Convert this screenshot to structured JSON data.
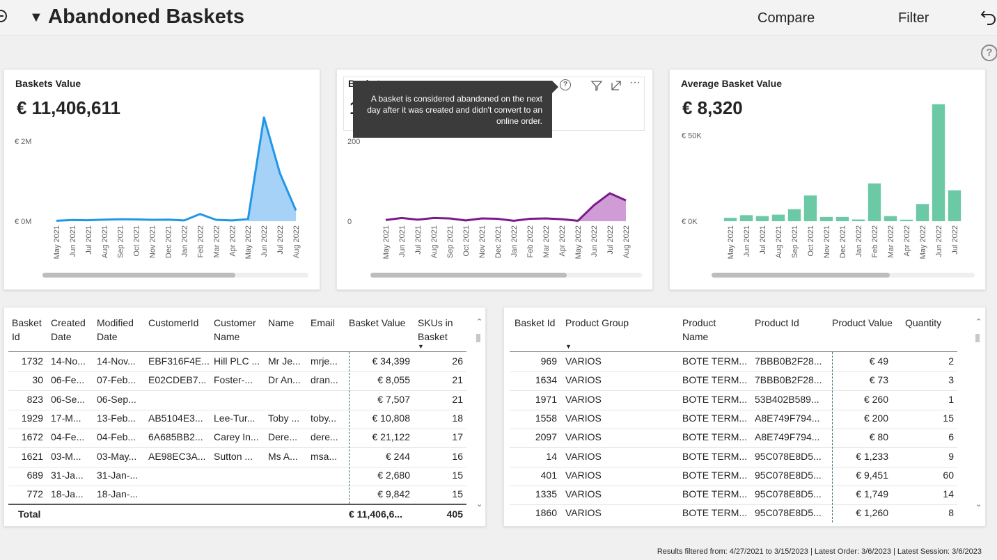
{
  "header": {
    "title": "Abandoned Baskets",
    "compare_label": "Compare",
    "filter_label": "Filter"
  },
  "cards": {
    "baskets_value": {
      "title": "Baskets Value",
      "kpi": "€ 11,406,611"
    },
    "baskets": {
      "title": "Baskets",
      "kpi_partial": "1"
    },
    "avg_basket_value": {
      "title": "Average Basket Value",
      "kpi": "€ 8,320"
    }
  },
  "tooltip": {
    "line1": "A basket is considered abandoned on the next",
    "line2": "day after it was created and didn't convert to an",
    "line3": "online order."
  },
  "colors": {
    "blue_line": "#2196e8",
    "blue_fill": "#a6d2f7",
    "purple_line": "#7b1a8a",
    "purple_fill": "#cf9cd6",
    "green_bar": "#6cc9a6"
  },
  "chart_data": [
    {
      "type": "area",
      "title": "Baskets Value",
      "categories": [
        "May 2021",
        "Jun 2021",
        "Jul 2021",
        "Aug 2021",
        "Sep 2021",
        "Oct 2021",
        "Nov 2021",
        "Dec 2021",
        "Jan 2022",
        "Feb 2022",
        "Mar 2022",
        "Apr 2022",
        "May 2022",
        "Jun 2022",
        "Jul 2022",
        "Aug 2022"
      ],
      "yticks": [
        "€ 0M",
        "€ 2M"
      ],
      "ylim": [
        0,
        3100000
      ],
      "values": [
        10000,
        30000,
        25000,
        40000,
        50000,
        45000,
        35000,
        40000,
        20000,
        180000,
        35000,
        20000,
        50000,
        2600000,
        1200000,
        270000
      ],
      "filled_from_index": 12
    },
    {
      "type": "area",
      "title": "Baskets",
      "categories": [
        "May 2021",
        "Jun 2021",
        "Jul 2021",
        "Aug 2021",
        "Sep 2021",
        "Oct 2021",
        "Nov 2021",
        "Dec 2021",
        "Jan 2022",
        "Feb 2022",
        "Mar 2022",
        "Apr 2022",
        "May 2022",
        "Jun 2022",
        "Jul 2022",
        "Aug 2022"
      ],
      "yticks": [
        "0",
        "200"
      ],
      "ylim": [
        0,
        310
      ],
      "values": [
        3,
        8,
        4,
        8,
        7,
        2,
        7,
        6,
        1,
        6,
        7,
        5,
        1,
        40,
        70,
        52
      ],
      "filled_from_index": 12
    },
    {
      "type": "bar",
      "title": "Average Basket Value",
      "categories": [
        "May 2021",
        "Jun 2021",
        "Jul 2021",
        "Aug 2021",
        "Sep 2021",
        "Oct 2021",
        "Nov 2021",
        "Dec 2021",
        "Jan 2022",
        "Feb 2022",
        "Mar 2022",
        "Apr 2022",
        "May 2022",
        "Jun 2022",
        "Jul 2022"
      ],
      "yticks": [
        "€ 0K",
        "€ 50K"
      ],
      "ylim": [
        0,
        72000
      ],
      "values": [
        2000,
        3500,
        3000,
        3800,
        7000,
        15000,
        2500,
        2500,
        1000,
        22000,
        3000,
        900,
        10000,
        68000,
        18000
      ]
    }
  ],
  "left_table": {
    "headers": [
      [
        "Basket",
        "Id"
      ],
      [
        "Created",
        "Date"
      ],
      [
        "Modified",
        "Date"
      ],
      [
        "CustomerId"
      ],
      [
        "Customer",
        "Name"
      ],
      [
        "Name"
      ],
      [
        "Email"
      ],
      [
        "Basket Value"
      ],
      [
        "SKUs in",
        "Basket"
      ]
    ],
    "rows": [
      [
        "1732",
        "14-No...",
        "14-Nov...",
        "EBF316F4E...",
        "Hill PLC ...",
        "Mr Je...",
        "mrje...",
        "€ 34,399",
        "26"
      ],
      [
        "30",
        "06-Fe...",
        "07-Feb...",
        "E02CDEB7...",
        "Foster-...",
        "Dr An...",
        "dran...",
        "€ 8,055",
        "21"
      ],
      [
        "823",
        "06-Se...",
        "06-Sep...",
        "",
        "",
        "",
        "",
        "€ 7,507",
        "21"
      ],
      [
        "1929",
        "17-M...",
        "13-Feb...",
        "AB5104E3...",
        "Lee-Tur...",
        "Toby ...",
        "toby...",
        "€ 10,808",
        "18"
      ],
      [
        "1672",
        "04-Fe...",
        "04-Feb...",
        "6A685BB2...",
        "Carey In...",
        "Dere...",
        "dere...",
        "€ 21,122",
        "17"
      ],
      [
        "1621",
        "03-M...",
        "03-May...",
        "AE98EC3A...",
        "Sutton ...",
        "Ms A...",
        "msa...",
        "€ 244",
        "16"
      ],
      [
        "689",
        "31-Ja...",
        "31-Jan-...",
        "",
        "",
        "",
        "",
        "€ 2,680",
        "15"
      ],
      [
        "772",
        "18-Ja...",
        "18-Jan-...",
        "",
        "",
        "",
        "",
        "€ 9,842",
        "15"
      ]
    ],
    "total_label": "Total",
    "total_value": "€ 11,406,6...",
    "total_skus": "405"
  },
  "right_table": {
    "headers": [
      [
        "Basket Id"
      ],
      [
        "Product Group"
      ],
      [
        "Product",
        "Name"
      ],
      [
        "Product Id"
      ],
      [
        "Product Value"
      ],
      [
        "Quantity"
      ]
    ],
    "rows": [
      [
        "969",
        "VARIOS",
        "BOTE TERM...",
        "7BBB0B2F28...",
        "€ 49",
        "2"
      ],
      [
        "1634",
        "VARIOS",
        "BOTE TERM...",
        "7BBB0B2F28...",
        "€ 73",
        "3"
      ],
      [
        "1971",
        "VARIOS",
        "BOTE TERM...",
        "53B402B589...",
        "€ 260",
        "1"
      ],
      [
        "1558",
        "VARIOS",
        "BOTE TERM...",
        "A8E749F794...",
        "€ 200",
        "15"
      ],
      [
        "2097",
        "VARIOS",
        "BOTE TERM...",
        "A8E749F794...",
        "€ 80",
        "6"
      ],
      [
        "14",
        "VARIOS",
        "BOTE TERM...",
        "95C078E8D5...",
        "€ 1,233",
        "9"
      ],
      [
        "401",
        "VARIOS",
        "BOTE TERM...",
        "95C078E8D5...",
        "€ 9,451",
        "60"
      ],
      [
        "1335",
        "VARIOS",
        "BOTE TERM...",
        "95C078E8D5...",
        "€ 1,749",
        "14"
      ],
      [
        "1860",
        "VARIOS",
        "BOTE TERM...",
        "95C078E8D5...",
        "€ 1,260",
        "8"
      ]
    ]
  },
  "footer": {
    "text": "Results filtered from: 4/27/2021 to 3/15/2023  |  Latest Order: 3/6/2023  |  Latest Session: 3/6/2023"
  }
}
